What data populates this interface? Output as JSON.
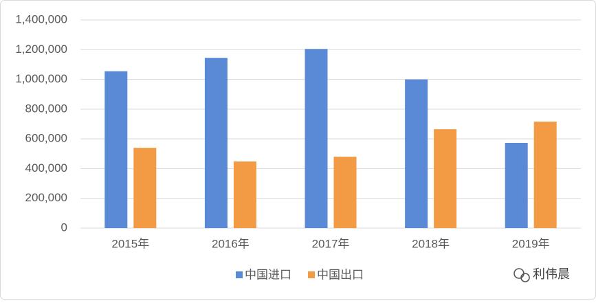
{
  "chart_data": {
    "type": "bar",
    "categories": [
      "2015年",
      "2016年",
      "2017年",
      "2018年",
      "2019年"
    ],
    "series": [
      {
        "name": "中国进口",
        "color": "#5a8ad6",
        "values": [
          1055000,
          1145000,
          1205000,
          1000000,
          573000
        ]
      },
      {
        "name": "中国出口",
        "color": "#f39a44",
        "values": [
          540000,
          448000,
          480000,
          665000,
          716000
        ]
      }
    ],
    "ylim": [
      0,
      1400000
    ],
    "yticks": [
      0,
      {
        "value": 200000,
        "label": "200,000"
      },
      {
        "value": 400000,
        "label": "400,000"
      },
      {
        "value": 600000,
        "label": "600,000"
      },
      {
        "value": 800000,
        "label": "800,000"
      },
      {
        "value": 1000000,
        "label": "1,000,000"
      },
      {
        "value": 1200000,
        "label": "1,200,000"
      },
      {
        "value": 1400000,
        "label": "1,400,000"
      }
    ],
    "grid": true,
    "legend": "bottom",
    "watermark": "利伟晨"
  }
}
